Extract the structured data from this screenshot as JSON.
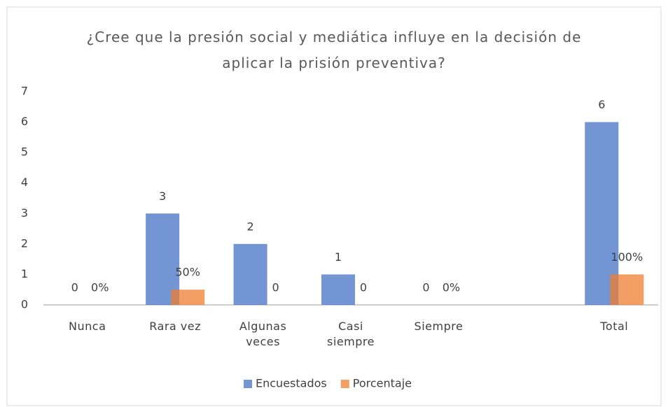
{
  "chart_data": {
    "type": "bar",
    "title": "¿Cree que la presión social y mediática influye en la decisión de aplicar la prisión preventiva?",
    "categories": [
      "Nunca",
      "Rara vez",
      "Algunas veces",
      "Casi siempre",
      "Siempre",
      null,
      "Total"
    ],
    "series": [
      {
        "name": "Encuestados",
        "color": "#4472c4",
        "values": [
          0,
          3,
          2,
          1,
          0,
          null,
          6
        ]
      },
      {
        "name": "Porcentaje",
        "color": "#ed7d31",
        "values": [
          0,
          0.5,
          0,
          0,
          0,
          null,
          1
        ],
        "value_labels": [
          "0%",
          "50%",
          "0",
          "0",
          "0%",
          null,
          "100%"
        ]
      }
    ],
    "ylim": [
      0,
      7
    ],
    "yticks": [
      0,
      1,
      2,
      3,
      4,
      5,
      6,
      7
    ],
    "grid": false,
    "legend": "bottom"
  }
}
